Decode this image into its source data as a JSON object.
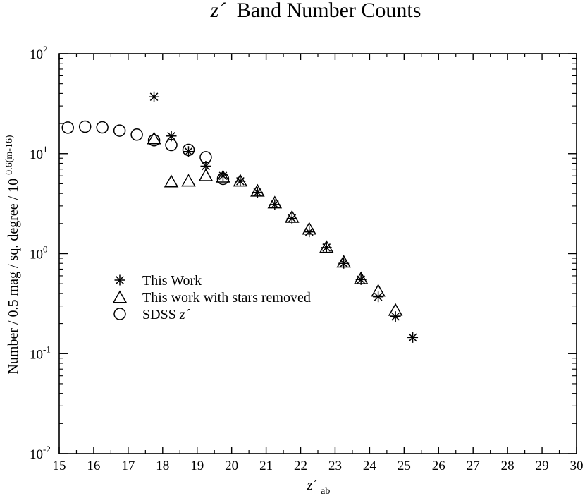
{
  "chart_data": {
    "type": "scatter",
    "title": {
      "main": "z´",
      "rest": "Band Number Counts"
    },
    "xlabel": {
      "main": "z´",
      "sub": "ab"
    },
    "ylabel": {
      "main": "Number / 0.5 mag / sq. degree / 10",
      "sup": "0.6(m-16)"
    },
    "x_scale": "linear",
    "y_scale": "log",
    "xlim": [
      15,
      30
    ],
    "ylim": [
      0.01,
      100
    ],
    "x_ticks": [
      "15",
      "16",
      "17",
      "18",
      "19",
      "20",
      "21",
      "22",
      "23",
      "24",
      "25",
      "26",
      "27",
      "28",
      "29",
      "30"
    ],
    "y_ticks": [
      {
        "value": 0.01,
        "base": "10",
        "exp": "-2"
      },
      {
        "value": 0.1,
        "base": "10",
        "exp": "-1"
      },
      {
        "value": 1,
        "base": "10",
        "exp": "0"
      },
      {
        "value": 10,
        "base": "10",
        "exp": "1"
      },
      {
        "value": 100,
        "base": "10",
        "exp": "2"
      }
    ],
    "grid": false,
    "legend_position": "center-left",
    "series": [
      {
        "name": "This Work",
        "marker": "asterisk",
        "x": [
          17.75,
          18.25,
          18.75,
          19.25,
          19.75,
          20.25,
          20.75,
          21.25,
          21.75,
          22.25,
          22.75,
          23.25,
          23.75,
          24.25,
          24.75,
          25.25
        ],
        "y": [
          37,
          15,
          10.5,
          7.5,
          6.0,
          5.3,
          4.1,
          3.1,
          2.25,
          1.65,
          1.15,
          0.8,
          0.55,
          0.37,
          0.235,
          0.145
        ]
      },
      {
        "name": "This work with stars removed",
        "marker": "triangle",
        "x": [
          17.75,
          18.25,
          18.75,
          19.25,
          19.75,
          20.25,
          20.75,
          21.25,
          21.75,
          22.25,
          22.75,
          23.25,
          23.75,
          24.25,
          24.75
        ],
        "y": [
          14,
          5.2,
          5.3,
          6.0,
          5.8,
          5.3,
          4.2,
          3.2,
          2.3,
          1.75,
          1.15,
          0.82,
          0.56,
          0.42,
          0.27
        ]
      },
      {
        "name": "SDSS",
        "name_suffix": "z´",
        "marker": "circle",
        "x": [
          15.25,
          15.75,
          16.25,
          16.75,
          17.25,
          17.75,
          18.25,
          18.75,
          19.25,
          19.75
        ],
        "y": [
          18.2,
          18.6,
          18.3,
          17.0,
          15.5,
          13.6,
          12.2,
          10.9,
          9.2,
          5.6
        ]
      }
    ]
  }
}
